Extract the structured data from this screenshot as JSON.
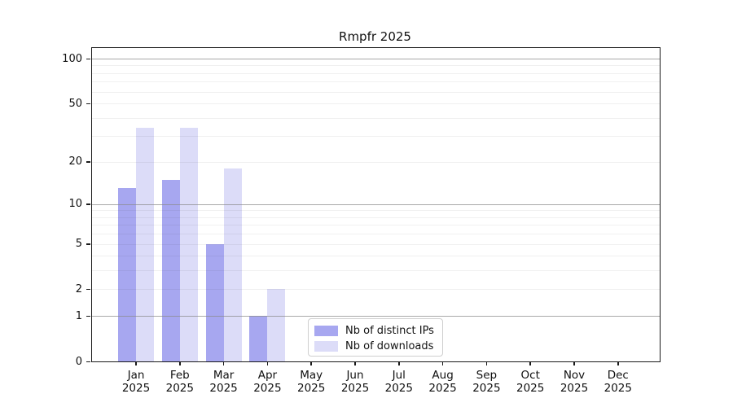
{
  "chart_data": {
    "type": "bar",
    "title": "Rmpfr 2025",
    "categories": [
      "Jan",
      "Feb",
      "Mar",
      "Apr",
      "May",
      "Jun",
      "Jul",
      "Aug",
      "Sep",
      "Oct",
      "Nov",
      "Dec"
    ],
    "category_year": "2025",
    "series": [
      {
        "name": "Nb of distinct IPs",
        "color": "#a7a7f0",
        "values": [
          13,
          15,
          5,
          1,
          0,
          0,
          0,
          0,
          0,
          0,
          0,
          0
        ]
      },
      {
        "name": "Nb of downloads",
        "color": "#dcdcf8",
        "values": [
          34,
          34,
          18,
          2,
          0,
          0,
          0,
          0,
          0,
          0,
          0,
          0
        ]
      }
    ],
    "y_ticks": [
      0,
      1,
      2,
      5,
      10,
      20,
      50,
      100
    ],
    "y_gridlines_major": [
      1,
      10,
      100
    ],
    "y_scale": "log1p",
    "ylim": [
      0,
      118
    ],
    "grid": "horizontal major+minor (log decades)",
    "legend_position": "inside bottom, right of Apr bars"
  }
}
